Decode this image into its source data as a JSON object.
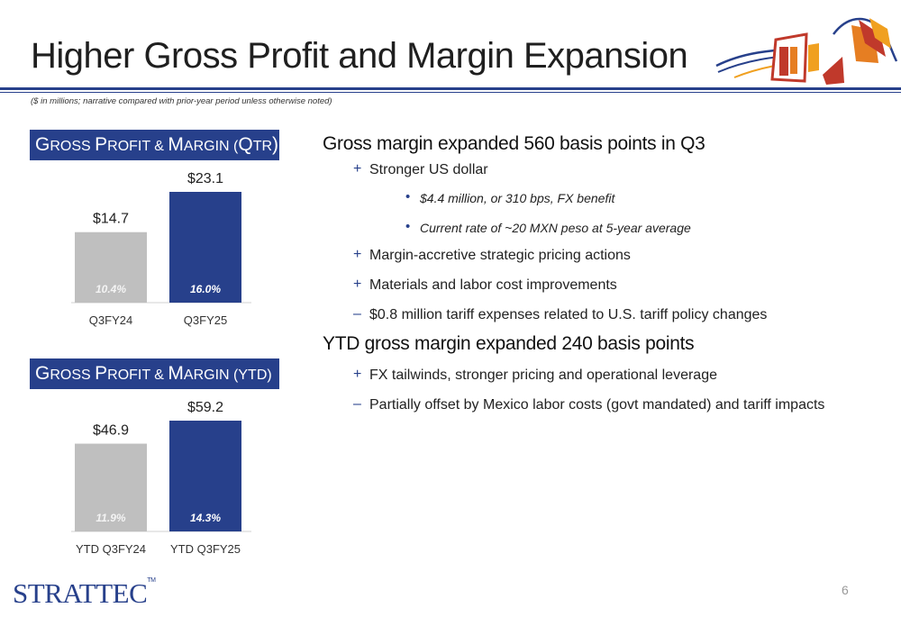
{
  "slide": {
    "title": "Higher Gross Profit and Margin Expansion",
    "subnote": "($ in millions; narrative compared with prior-year period unless otherwise noted)",
    "page_number": "6",
    "brand": "STRATTEC",
    "brand_tm": "TM"
  },
  "colors": {
    "accent": "#27408b",
    "prior_bar": "#bfbfbf",
    "current_bar": "#27408b"
  },
  "charts": {
    "qtr": {
      "header_a": "G",
      "header_b": "ROSS ",
      "header_c": "P",
      "header_d": "ROFIT & ",
      "header_e": "M",
      "header_f": "ARGIN (",
      "header_g": "Q",
      "header_h": "TR",
      "header_i": ")"
    },
    "ytd": {
      "header_a": "G",
      "header_b": "ROSS ",
      "header_c": "P",
      "header_d": "ROFIT & ",
      "header_e": "M",
      "header_f": "ARGIN (YTD)"
    }
  },
  "chart_data": [
    {
      "type": "bar",
      "title": "Gross Profit & Margin (Qtr)",
      "categories": [
        "Q3FY24",
        "Q3FY25"
      ],
      "values": [
        14.7,
        23.1
      ],
      "value_labels": [
        "$14.7",
        "$23.1"
      ],
      "inner_labels": [
        "10.4%",
        "16.0%"
      ],
      "colors": [
        "#bfbfbf",
        "#27408b"
      ],
      "ylim": [
        0,
        23.1
      ],
      "grid": false
    },
    {
      "type": "bar",
      "title": "Gross Profit & Margin (YTD)",
      "categories": [
        "YTD Q3FY24",
        "YTD Q3FY25"
      ],
      "values": [
        46.9,
        59.2
      ],
      "value_labels": [
        "$46.9",
        "$59.2"
      ],
      "inner_labels": [
        "11.9%",
        "14.3%"
      ],
      "colors": [
        "#bfbfbf",
        "#27408b"
      ],
      "ylim": [
        0,
        59.2
      ],
      "grid": false
    }
  ],
  "bullets": {
    "h1": "Gross margin expanded 560 basis points in Q3",
    "b1": {
      "mark": "+",
      "text": "Stronger US dollar"
    },
    "b1a": {
      "mark": "•",
      "text": "$4.4 million, or 310 bps, FX benefit"
    },
    "b1b": {
      "mark": "•",
      "text": "Current rate of ~20 MXN peso at 5-year average"
    },
    "b2": {
      "mark": "+",
      "text": "Margin-accretive strategic pricing actions"
    },
    "b3": {
      "mark": "+",
      "text": "Materials and labor cost improvements"
    },
    "b4": {
      "mark": "–",
      "text": "$0.8 million tariff expenses related to U.S. tariff policy changes"
    },
    "h2": "YTD gross margin expanded 240 basis points",
    "b5": {
      "mark": "+",
      "text": "FX tailwinds, stronger pricing and operational leverage"
    },
    "b6": {
      "mark": "–",
      "text": "Partially offset by Mexico labor costs (govt mandated) and tariff impacts"
    }
  }
}
